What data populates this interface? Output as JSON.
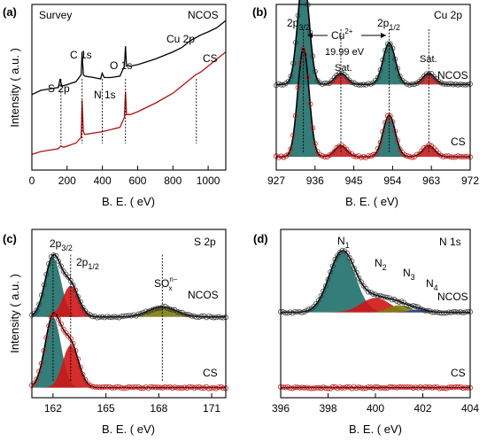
{
  "chart_data": [
    {
      "id": "a",
      "type": "line",
      "panel_label": "(a)",
      "title": "Survey",
      "xlabel": "B. E. ( eV)",
      "ylabel": "Intensity ( a.u. )",
      "xlim": [
        0,
        1100
      ],
      "xticks": [
        0,
        200,
        400,
        600,
        800,
        1000
      ],
      "grid": false,
      "series": [
        {
          "name": "NCOS",
          "color": "#000000",
          "x": [
            0,
            50,
            100,
            150,
            160,
            170,
            200,
            250,
            280,
            285,
            292,
            300,
            350,
            390,
            399,
            410,
            450,
            500,
            525,
            531,
            537,
            560,
            600,
            700,
            800,
            850,
            900,
            930,
            960,
            1000,
            1050,
            1080,
            1100
          ],
          "y": [
            0.46,
            0.49,
            0.5,
            0.51,
            0.57,
            0.52,
            0.53,
            0.55,
            0.6,
            0.76,
            0.6,
            0.59,
            0.58,
            0.57,
            0.61,
            0.58,
            0.58,
            0.59,
            0.66,
            0.8,
            0.66,
            0.66,
            0.67,
            0.71,
            0.76,
            0.79,
            0.84,
            0.86,
            0.88,
            0.9,
            0.93,
            0.96,
            0.98
          ]
        },
        {
          "name": "CS",
          "color": "#b01010",
          "x": [
            0,
            50,
            100,
            150,
            165,
            180,
            250,
            280,
            285,
            292,
            300,
            400,
            500,
            525,
            531,
            537,
            560,
            600,
            700,
            800,
            850,
            900,
            930,
            960,
            1000,
            1050,
            1100
          ],
          "y": [
            0.04,
            0.06,
            0.07,
            0.08,
            0.1,
            0.09,
            0.12,
            0.16,
            0.42,
            0.2,
            0.18,
            0.2,
            0.23,
            0.3,
            0.48,
            0.32,
            0.32,
            0.34,
            0.4,
            0.47,
            0.52,
            0.57,
            0.6,
            0.62,
            0.66,
            0.71,
            0.76
          ]
        }
      ],
      "annotations": [
        {
          "text": "S 2p",
          "x": 165
        },
        {
          "text": "C 1s",
          "x": 285
        },
        {
          "text": "N 1s",
          "x": 399
        },
        {
          "text": "O 1s",
          "x": 531
        },
        {
          "text": "Cu 2p",
          "x": 933
        },
        {
          "text": "NCOS"
        },
        {
          "text": "CS"
        }
      ]
    },
    {
      "id": "b",
      "type": "line",
      "panel_label": "(b)",
      "title": "Cu 2p",
      "xlabel": "B. E. ( eV)",
      "ylabel": "",
      "xlim": [
        927,
        972
      ],
      "xticks": [
        927,
        936,
        945,
        954,
        963,
        972
      ],
      "grid": false,
      "offsets": {
        "NCOS": 0.52,
        "CS": 0.0
      },
      "components": [
        {
          "name": "2p3/2",
          "center": 933.3,
          "width": 1.3,
          "amp": 0.78,
          "color": "#1f6f6a"
        },
        {
          "name": "Sat.",
          "center": 942.0,
          "width": 1.4,
          "amp": 0.08,
          "color": "#c02020"
        },
        {
          "name": "2p1/2",
          "center": 953.2,
          "width": 1.4,
          "amp": 0.3,
          "color": "#1f6f6a"
        },
        {
          "name": "Sat.",
          "center": 962.4,
          "width": 1.4,
          "amp": 0.08,
          "color": "#c02020"
        }
      ],
      "annotations": [
        {
          "text": "2p3/2",
          "x": 933.3
        },
        {
          "text": "2p1/2",
          "x": 953.2
        },
        {
          "text": "Cu2+"
        },
        {
          "text": "19.99 eV"
        },
        {
          "text": "Sat.",
          "x": 942.0
        },
        {
          "text": "Sat.",
          "x": 962.4
        },
        {
          "text": "NCOS"
        },
        {
          "text": "CS"
        }
      ]
    },
    {
      "id": "c",
      "type": "line",
      "panel_label": "(c)",
      "title": "S 2p",
      "xlabel": "B. E. ( eV)",
      "ylabel": "Intensity ( a.u. )",
      "xlim": [
        160.8,
        171.8
      ],
      "xticks": [
        162,
        165,
        168,
        171
      ],
      "grid": false,
      "offsets": {
        "NCOS": 0.5,
        "CS": 0.0
      },
      "components": [
        {
          "name": "2p3/2",
          "center": 162.0,
          "width": 0.45,
          "amp": 0.42,
          "color": "#1f6f6a",
          "cs_amp": 0.5
        },
        {
          "name": "2p1/2",
          "center": 163.0,
          "width": 0.45,
          "amp": 0.22,
          "color": "#d01515",
          "cs_amp": 0.3
        },
        {
          "name": "SOx n-",
          "center": 168.2,
          "width": 0.8,
          "amp": 0.07,
          "color": "#7c7c10",
          "cs_amp": 0.0
        }
      ],
      "annotations": [
        {
          "text": "2p3/2",
          "x": 162.0
        },
        {
          "text": "2p1/2",
          "x": 163.0
        },
        {
          "text": "SOx n-",
          "x": 168.2
        },
        {
          "text": "NCOS"
        },
        {
          "text": "CS"
        }
      ]
    },
    {
      "id": "d",
      "type": "line",
      "panel_label": "(d)",
      "title": "N 1s",
      "xlabel": "B. E. ( eV)",
      "ylabel": "",
      "xlim": [
        396,
        404
      ],
      "xticks": [
        396,
        398,
        400,
        402,
        404
      ],
      "grid": false,
      "offsets": {
        "NCOS": 0.52,
        "CS": 0.0
      },
      "components": [
        {
          "name": "N1",
          "center": 398.6,
          "width": 0.55,
          "amp": 0.42,
          "color": "#1f6f6a"
        },
        {
          "name": "N2",
          "center": 400.0,
          "width": 0.6,
          "amp": 0.1,
          "color": "#d01515"
        },
        {
          "name": "N3",
          "center": 401.0,
          "width": 0.45,
          "amp": 0.05,
          "color": "#7c7c10"
        },
        {
          "name": "N4",
          "center": 401.8,
          "width": 0.35,
          "amp": 0.02,
          "color": "#2040b0"
        }
      ],
      "annotations": [
        {
          "text": "N1",
          "x": 398.6
        },
        {
          "text": "N2",
          "x": 400.0
        },
        {
          "text": "N3",
          "x": 401.0
        },
        {
          "text": "N4",
          "x": 401.8
        },
        {
          "text": "NCOS"
        },
        {
          "text": "CS"
        }
      ]
    }
  ]
}
